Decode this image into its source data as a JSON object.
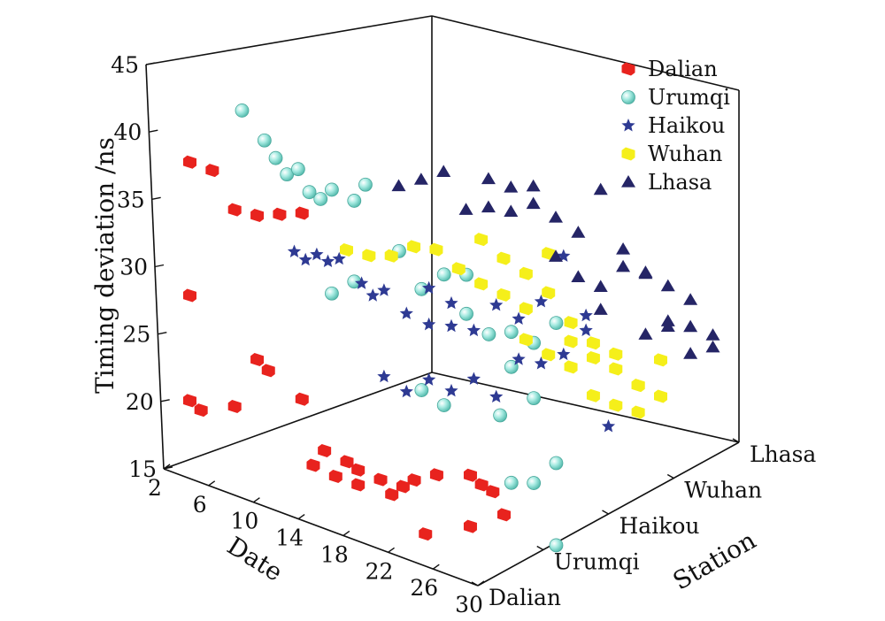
{
  "chart_data": {
    "type": "scatter",
    "subtype": "3d-scatter",
    "x_axis": {
      "title": "Date",
      "ticks": [
        "2",
        "6",
        "10",
        "14",
        "18",
        "22",
        "26",
        "30"
      ],
      "range": [
        2,
        30
      ]
    },
    "y_axis": {
      "title": "Station",
      "categories": [
        "Dalian",
        "Urumqi",
        "Haikou",
        "Wuhan",
        "Lhasa"
      ]
    },
    "z_axis": {
      "title": "Timing deviation /ns",
      "ticks": [
        "15",
        "20",
        "25",
        "30",
        "35",
        "40",
        "45"
      ],
      "range": [
        15,
        45
      ]
    },
    "legend_position": "top-right",
    "series": [
      {
        "name": "Dalian",
        "marker": "square",
        "color": "#e8231e",
        "points": [
          [
            2,
            36.7
          ],
          [
            4,
            36.7
          ],
          [
            6,
            34.4
          ],
          [
            8,
            34.6
          ],
          [
            10,
            35.3
          ],
          [
            12,
            36.0
          ],
          [
            2,
            26.8
          ],
          [
            2,
            19.0
          ],
          [
            3,
            18.6
          ],
          [
            6,
            19.8
          ],
          [
            8,
            23.9
          ],
          [
            9,
            23.4
          ],
          [
            12,
            22.2
          ],
          [
            13,
            17.6
          ],
          [
            14,
            19.0
          ],
          [
            16,
            18.8
          ],
          [
            17,
            18.5
          ],
          [
            15,
            17.4
          ],
          [
            17,
            17.4
          ],
          [
            19,
            18.4
          ],
          [
            20,
            17.6
          ],
          [
            21,
            18.5
          ],
          [
            22,
            19.3
          ],
          [
            23,
            15.6
          ],
          [
            27,
            17.4
          ],
          [
            24,
            20.3
          ],
          [
            27,
            21.2
          ],
          [
            28,
            20.8
          ],
          [
            29,
            20.6
          ],
          [
            30,
            19.2
          ]
        ]
      },
      {
        "name": "Urumqi",
        "marker": "sphere",
        "color": "#7fd8cc",
        "points": [
          [
            2,
            38.4
          ],
          [
            4,
            36.8
          ],
          [
            5,
            35.8
          ],
          [
            6,
            34.9
          ],
          [
            7,
            35.6
          ],
          [
            8,
            34.2
          ],
          [
            9,
            34.0
          ],
          [
            10,
            35.0
          ],
          [
            12,
            34.8
          ],
          [
            13,
            36.3
          ],
          [
            10,
            27.3
          ],
          [
            12,
            28.8
          ],
          [
            16,
            32.3
          ],
          [
            18,
            30.1
          ],
          [
            20,
            31.8
          ],
          [
            22,
            29.5
          ],
          [
            24,
            28.6
          ],
          [
            25,
            22.9
          ],
          [
            26,
            26.8
          ],
          [
            28,
            25.1
          ],
          [
            22,
            32.4
          ],
          [
            26,
            29.4
          ],
          [
            28,
            29.2
          ],
          [
            30,
            31.3
          ],
          [
            30,
            20.9
          ],
          [
            20,
            22.1
          ],
          [
            18,
            22.6
          ],
          [
            30,
            14.8
          ],
          [
            28,
            18.8
          ],
          [
            26,
            18.2
          ]
        ]
      },
      {
        "name": "Haikou",
        "marker": "star",
        "color": "#2e3a93",
        "points": [
          [
            2,
            25.8
          ],
          [
            3,
            25.5
          ],
          [
            4,
            26.2
          ],
          [
            5,
            26.0
          ],
          [
            6,
            26.5
          ],
          [
            8,
            25.3
          ],
          [
            9,
            24.7
          ],
          [
            10,
            25.4
          ],
          [
            12,
            24.3
          ],
          [
            14,
            24.1
          ],
          [
            16,
            24.6
          ],
          [
            18,
            24.9
          ],
          [
            20,
            27.4
          ],
          [
            22,
            27.0
          ],
          [
            24,
            28.9
          ],
          [
            26,
            32.9
          ],
          [
            28,
            29.1
          ],
          [
            14,
            26.8
          ],
          [
            16,
            26.3
          ],
          [
            18,
            21.3
          ],
          [
            20,
            20.6
          ],
          [
            22,
            24.0
          ],
          [
            24,
            24.3
          ],
          [
            26,
            25.6
          ],
          [
            28,
            28.0
          ],
          [
            30,
            21.5
          ],
          [
            10,
            19.0
          ],
          [
            12,
            18.5
          ],
          [
            14,
            20.0
          ],
          [
            16,
            19.8
          ]
        ]
      },
      {
        "name": "Wuhan",
        "marker": "square",
        "color": "#f5ef1a",
        "points": [
          [
            2,
            23.8
          ],
          [
            4,
            24.0
          ],
          [
            6,
            24.6
          ],
          [
            8,
            25.9
          ],
          [
            10,
            26.3
          ],
          [
            12,
            25.5
          ],
          [
            14,
            25.0
          ],
          [
            16,
            24.8
          ],
          [
            18,
            24.4
          ],
          [
            20,
            29.1
          ],
          [
            22,
            23.2
          ],
          [
            24,
            22.6
          ],
          [
            26,
            22.4
          ],
          [
            28,
            21.8
          ],
          [
            30,
            24.3
          ],
          [
            14,
            28.3
          ],
          [
            16,
            27.5
          ],
          [
            18,
            27.0
          ],
          [
            20,
            26.2
          ],
          [
            22,
            24.6
          ],
          [
            24,
            23.7
          ],
          [
            26,
            23.5
          ],
          [
            28,
            21.8
          ],
          [
            30,
            21.6
          ],
          [
            18,
            22.1
          ],
          [
            20,
            21.6
          ],
          [
            22,
            21.3
          ],
          [
            24,
            19.8
          ],
          [
            26,
            19.7
          ],
          [
            28,
            19.8
          ]
        ]
      },
      {
        "name": "Lhasa",
        "marker": "triangle",
        "color": "#252566",
        "points": [
          [
            2,
            26.4
          ],
          [
            4,
            27.5
          ],
          [
            6,
            28.7
          ],
          [
            8,
            26.5
          ],
          [
            10,
            27.3
          ],
          [
            12,
            27.6
          ],
          [
            14,
            30.1
          ],
          [
            16,
            25.5
          ],
          [
            18,
            24.6
          ],
          [
            20,
            24.5
          ],
          [
            22,
            26.6
          ],
          [
            24,
            26.7
          ],
          [
            26,
            23.8
          ],
          [
            28,
            24.0
          ],
          [
            30,
            23.1
          ],
          [
            10,
            29.4
          ],
          [
            12,
            29.4
          ],
          [
            14,
            28.8
          ],
          [
            16,
            28.4
          ],
          [
            18,
            27.9
          ],
          [
            20,
            31.7
          ],
          [
            22,
            27.9
          ],
          [
            24,
            26.8
          ],
          [
            26,
            26.4
          ],
          [
            28,
            26.0
          ],
          [
            30,
            24.0
          ],
          [
            20,
            22.8
          ],
          [
            24,
            22.2
          ],
          [
            26,
            23.4
          ],
          [
            28,
            22.0
          ]
        ]
      }
    ]
  }
}
